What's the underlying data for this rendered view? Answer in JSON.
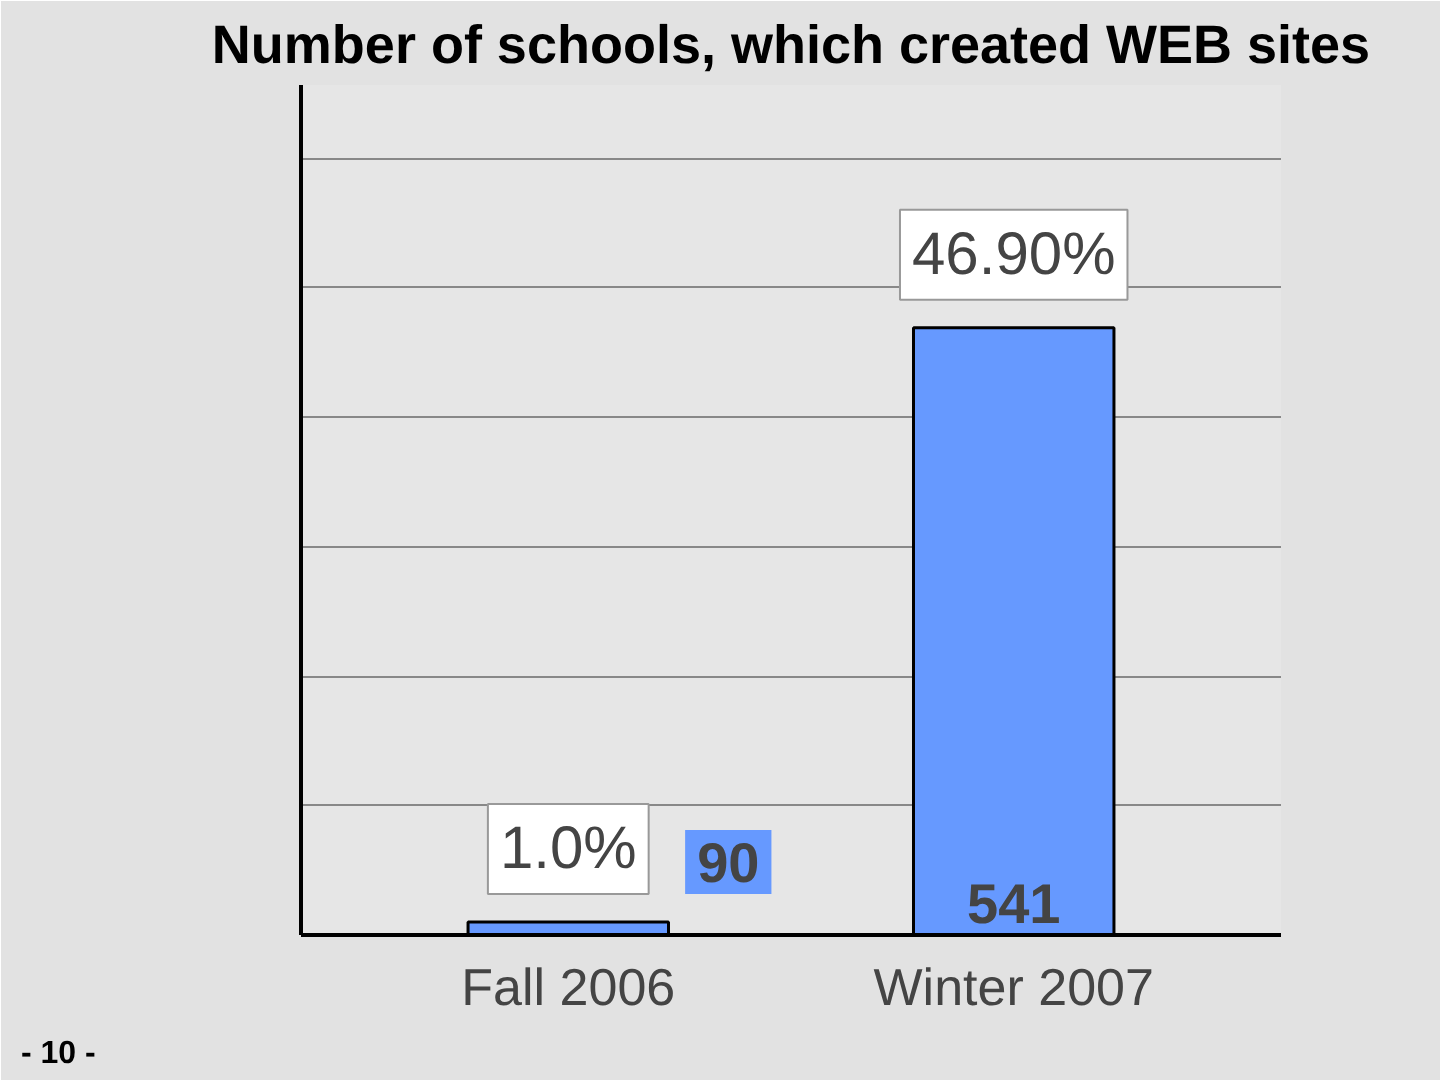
{
  "chart_data": {
    "type": "bar",
    "title": "Number of schools, which created WEB sites",
    "categories": [
      "Fall 2006",
      "Winter 2007"
    ],
    "values": [
      1.0,
      46.9
    ],
    "color": "#6699ff",
    "value_labels": [
      "1.0%",
      "46.90%"
    ],
    "annotations": [
      {
        "text": "90",
        "x": "Fall 2006",
        "y": 1.0
      },
      {
        "text": "541",
        "x": "Winter 2007",
        "y": 0
      },
      "- 10 -"
    ],
    "grid": "y",
    "tick_labels": "x"
  }
}
